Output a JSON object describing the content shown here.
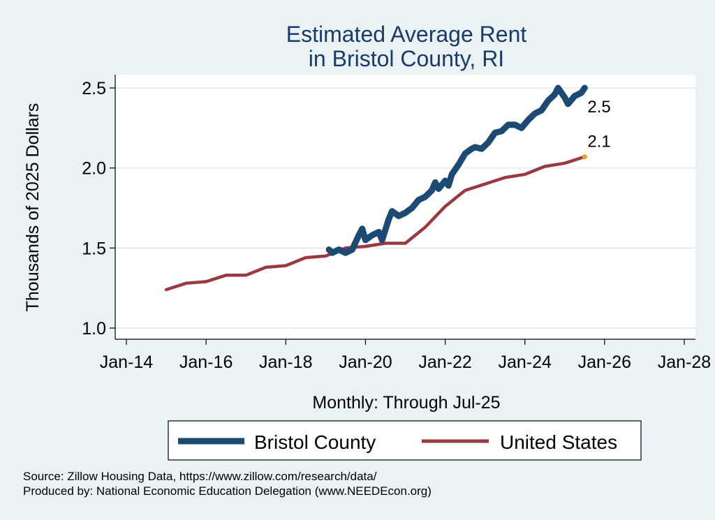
{
  "colors": {
    "background": "#eaf2f3",
    "plot_background": "#ffffff",
    "grid": "#e6eef0",
    "bristol": "#1c4a74",
    "us": "#9a3a40",
    "end_dot": "#e8a020",
    "title": "#1a3a6b"
  },
  "footnotes": {
    "source": "Source: Zillow Housing Data, https://www.zillow.com/research/data/",
    "produced": "Produced by: National Economic Education Delegation (www.NEEDEcon.org)"
  },
  "chart_data": {
    "type": "line",
    "title": [
      "Estimated Average Rent",
      "in Bristol County, RI"
    ],
    "xlabel": "Monthly: Through Jul-25",
    "ylabel": "Thousands of 2025 Dollars",
    "x_ticks": [
      "Jan-14",
      "Jan-16",
      "Jan-18",
      "Jan-20",
      "Jan-22",
      "Jan-24",
      "Jan-26",
      "Jan-28"
    ],
    "y_ticks": [
      "1.0",
      "1.5",
      "2.0",
      "2.5"
    ],
    "xlim": [
      "2014-01",
      "2028-01"
    ],
    "ylim": [
      0.95,
      2.57
    ],
    "grid": true,
    "legend_position": "bottom",
    "series": [
      {
        "name": "Bristol County",
        "end_label": "2.5",
        "points": [
          [
            "2019-02",
            1.49
          ],
          [
            "2019-03",
            1.47
          ],
          [
            "2019-05",
            1.49
          ],
          [
            "2019-07",
            1.47
          ],
          [
            "2019-09",
            1.49
          ],
          [
            "2019-11",
            1.58
          ],
          [
            "2019-12",
            1.62
          ],
          [
            "2020-01",
            1.55
          ],
          [
            "2020-03",
            1.58
          ],
          [
            "2020-05",
            1.6
          ],
          [
            "2020-06",
            1.55
          ],
          [
            "2020-08",
            1.68
          ],
          [
            "2020-09",
            1.73
          ],
          [
            "2020-11",
            1.7
          ],
          [
            "2021-01",
            1.72
          ],
          [
            "2021-03",
            1.75
          ],
          [
            "2021-05",
            1.8
          ],
          [
            "2021-07",
            1.82
          ],
          [
            "2021-09",
            1.86
          ],
          [
            "2021-10",
            1.91
          ],
          [
            "2021-11",
            1.87
          ],
          [
            "2022-01",
            1.92
          ],
          [
            "2022-02",
            1.89
          ],
          [
            "2022-03",
            1.96
          ],
          [
            "2022-05",
            2.02
          ],
          [
            "2022-07",
            2.09
          ],
          [
            "2022-09",
            2.12
          ],
          [
            "2022-10",
            2.13
          ],
          [
            "2022-12",
            2.12
          ],
          [
            "2023-02",
            2.16
          ],
          [
            "2023-04",
            2.22
          ],
          [
            "2023-06",
            2.23
          ],
          [
            "2023-08",
            2.27
          ],
          [
            "2023-10",
            2.27
          ],
          [
            "2023-12",
            2.25
          ],
          [
            "2024-02",
            2.3
          ],
          [
            "2024-04",
            2.34
          ],
          [
            "2024-06",
            2.36
          ],
          [
            "2024-08",
            2.42
          ],
          [
            "2024-10",
            2.46
          ],
          [
            "2024-11",
            2.5
          ],
          [
            "2025-01",
            2.44
          ],
          [
            "2025-02",
            2.4
          ],
          [
            "2025-04",
            2.45
          ],
          [
            "2025-06",
            2.47
          ],
          [
            "2025-07",
            2.5
          ]
        ]
      },
      {
        "name": "United States",
        "end_label": "2.1",
        "points": [
          [
            "2015-01",
            1.24
          ],
          [
            "2015-07",
            1.28
          ],
          [
            "2016-01",
            1.29
          ],
          [
            "2016-07",
            1.33
          ],
          [
            "2017-01",
            1.33
          ],
          [
            "2017-07",
            1.38
          ],
          [
            "2018-01",
            1.39
          ],
          [
            "2018-07",
            1.44
          ],
          [
            "2019-01",
            1.45
          ],
          [
            "2019-07",
            1.5
          ],
          [
            "2020-01",
            1.51
          ],
          [
            "2020-07",
            1.53
          ],
          [
            "2021-01",
            1.53
          ],
          [
            "2021-07",
            1.63
          ],
          [
            "2022-01",
            1.76
          ],
          [
            "2022-07",
            1.86
          ],
          [
            "2023-01",
            1.9
          ],
          [
            "2023-07",
            1.94
          ],
          [
            "2024-01",
            1.96
          ],
          [
            "2024-07",
            2.01
          ],
          [
            "2025-01",
            2.03
          ],
          [
            "2025-07",
            2.07
          ]
        ]
      }
    ]
  }
}
